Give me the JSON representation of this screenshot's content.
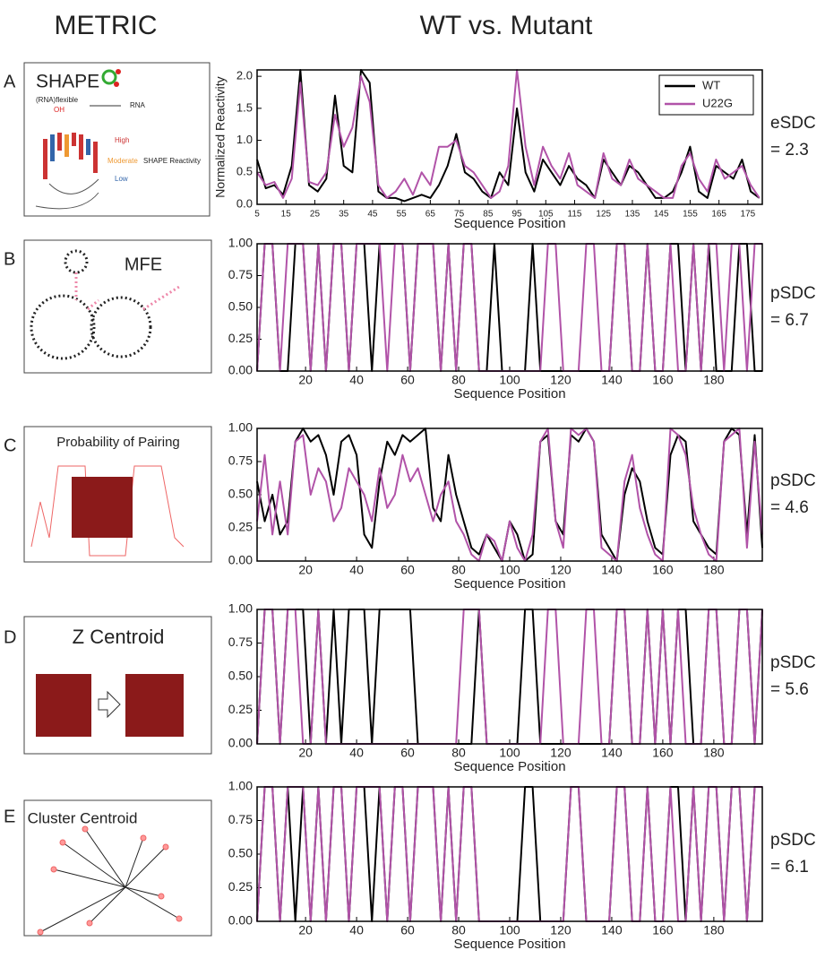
{
  "header": {
    "metric": "METRIC",
    "comparison": "WT vs. Mutant"
  },
  "panels": [
    {
      "letter": "A",
      "metric": "SHAPE",
      "texts": [
        "(RNA)flexible",
        "OH",
        "RNA",
        "High",
        "Moderate",
        "Low",
        "SHAPE Reactivity"
      ]
    },
    {
      "letter": "B",
      "metric": "MFE"
    },
    {
      "letter": "C",
      "metric": "Probability of Pairing"
    },
    {
      "letter": "D",
      "metric": "Z Centroid"
    },
    {
      "letter": "E",
      "metric": "Cluster Centroid"
    }
  ],
  "chart_data": [
    {
      "type": "line",
      "ylabel": "Normalized Reactivity",
      "xlabel": "Sequence Position",
      "annotation": [
        "eSDC",
        "= 2.3"
      ],
      "legend": "upper right",
      "xlim": [
        5,
        180
      ],
      "xticks": [
        5,
        15,
        25,
        35,
        45,
        55,
        65,
        75,
        85,
        95,
        105,
        115,
        125,
        135,
        145,
        155,
        165,
        175
      ],
      "ylim": [
        0,
        2.1
      ],
      "yticks": [
        {
          "value": 0,
          "label": "0.0"
        },
        0.5,
        {
          "value": 1,
          "label": "1.0"
        },
        1.5,
        {
          "value": 2,
          "label": "2.0"
        }
      ],
      "x": [
        5,
        8,
        11,
        14,
        17,
        20,
        23,
        26,
        29,
        32,
        35,
        38,
        41,
        44,
        47,
        50,
        53,
        56,
        59,
        62,
        65,
        68,
        71,
        74,
        77,
        80,
        83,
        86,
        89,
        92,
        95,
        98,
        101,
        104,
        107,
        110,
        113,
        116,
        119,
        122,
        125,
        128,
        131,
        134,
        137,
        140,
        143,
        146,
        149,
        152,
        155,
        158,
        161,
        164,
        167,
        170,
        173,
        176,
        179
      ],
      "series": [
        {
          "name": "WT",
          "color": "#000000",
          "values": [
            0.7,
            0.25,
            0.3,
            0.15,
            0.6,
            2.1,
            0.3,
            0.2,
            0.4,
            1.7,
            0.6,
            0.5,
            2.1,
            1.9,
            0.2,
            0.1,
            0.1,
            0.05,
            0.1,
            0.15,
            0.1,
            0.3,
            0.6,
            1.1,
            0.5,
            0.4,
            0.2,
            0.1,
            0.5,
            0.3,
            1.5,
            0.5,
            0.2,
            0.7,
            0.5,
            0.3,
            0.6,
            0.4,
            0.3,
            0.1,
            0.7,
            0.5,
            0.3,
            0.6,
            0.5,
            0.3,
            0.1,
            0.1,
            0.2,
            0.5,
            0.9,
            0.2,
            0.1,
            0.6,
            0.5,
            0.4,
            0.7,
            0.2,
            0.1
          ]
        },
        {
          "name": "U22G",
          "color": "#b153a8",
          "values": [
            0.5,
            0.3,
            0.35,
            0.1,
            0.4,
            1.9,
            0.35,
            0.3,
            0.5,
            1.4,
            0.9,
            1.2,
            2.0,
            1.6,
            0.3,
            0.1,
            0.2,
            0.4,
            0.15,
            0.5,
            0.3,
            0.9,
            0.9,
            1.0,
            0.6,
            0.5,
            0.3,
            0.1,
            0.2,
            0.6,
            2.1,
            0.9,
            0.3,
            0.9,
            0.6,
            0.4,
            0.8,
            0.3,
            0.2,
            0.1,
            0.8,
            0.4,
            0.3,
            0.7,
            0.4,
            0.3,
            0.2,
            0.1,
            0.1,
            0.6,
            0.8,
            0.4,
            0.2,
            0.7,
            0.4,
            0.5,
            0.6,
            0.3,
            0.1
          ]
        }
      ]
    },
    {
      "type": "line",
      "xlabel": "Sequence Position",
      "annotation": [
        "pSDC",
        "= 6.7"
      ],
      "xlim": [
        1,
        199
      ],
      "xticks": [
        20,
        40,
        60,
        80,
        100,
        120,
        140,
        160,
        180
      ],
      "ylim": [
        0,
        1
      ],
      "yticks": [
        {
          "value": 0,
          "label": "0.00"
        },
        {
          "value": 0.25,
          "label": "0.25"
        },
        {
          "value": 0.5,
          "label": "0.50"
        },
        {
          "value": 0.75,
          "label": "0.75"
        },
        {
          "value": 1,
          "label": "1.00"
        }
      ],
      "x": [
        1,
        4,
        7,
        10,
        13,
        16,
        19,
        22,
        25,
        28,
        31,
        34,
        37,
        40,
        43,
        46,
        49,
        52,
        55,
        58,
        61,
        64,
        67,
        70,
        73,
        76,
        79,
        82,
        85,
        88,
        91,
        94,
        97,
        100,
        103,
        106,
        109,
        112,
        115,
        118,
        121,
        124,
        127,
        130,
        133,
        136,
        139,
        142,
        145,
        148,
        151,
        154,
        157,
        160,
        163,
        166,
        169,
        172,
        175,
        178,
        181,
        184,
        187,
        190,
        193,
        196,
        199
      ],
      "series": [
        {
          "color": "#000000",
          "values": [
            0,
            1,
            1,
            0,
            0,
            1,
            1,
            0,
            1,
            0,
            1,
            1,
            0,
            1,
            1,
            0,
            1,
            1,
            1,
            1,
            0,
            1,
            1,
            1,
            0,
            1,
            0,
            1,
            1,
            0,
            0,
            1,
            0,
            0,
            0,
            0,
            1,
            0,
            0,
            0,
            0,
            0,
            0,
            0,
            0,
            0,
            0,
            1,
            1,
            0,
            0,
            1,
            0,
            0,
            1,
            1,
            0,
            1,
            0,
            1,
            0,
            0,
            0,
            1,
            1,
            0,
            0
          ]
        },
        {
          "color": "#b153a8",
          "values": [
            0,
            1,
            1,
            0,
            1,
            1,
            1,
            0,
            1,
            0,
            1,
            1,
            0,
            1,
            1,
            1,
            1,
            0,
            1,
            1,
            0,
            1,
            1,
            1,
            0,
            1,
            0,
            1,
            1,
            0,
            0,
            0,
            0,
            0,
            0,
            0,
            0,
            0,
            1,
            1,
            0,
            0,
            0,
            1,
            1,
            0,
            0,
            1,
            1,
            0,
            0,
            1,
            0,
            0,
            1,
            0,
            0,
            1,
            0,
            1,
            1,
            0,
            1,
            1,
            0,
            1,
            1
          ]
        }
      ]
    },
    {
      "type": "line",
      "xlabel": "Sequence Position",
      "annotation": [
        "pSDC",
        "= 4.6"
      ],
      "xlim": [
        1,
        199
      ],
      "xticks": [
        20,
        40,
        60,
        80,
        100,
        120,
        140,
        160,
        180
      ],
      "ylim": [
        0,
        1
      ],
      "yticks": [
        {
          "value": 0,
          "label": "0.00"
        },
        {
          "value": 0.25,
          "label": "0.25"
        },
        {
          "value": 0.5,
          "label": "0.50"
        },
        {
          "value": 0.75,
          "label": "0.75"
        },
        {
          "value": 1,
          "label": "1.00"
        }
      ],
      "x": [
        1,
        4,
        7,
        10,
        13,
        16,
        19,
        22,
        25,
        28,
        31,
        34,
        37,
        40,
        43,
        46,
        49,
        52,
        55,
        58,
        61,
        64,
        67,
        70,
        73,
        76,
        79,
        82,
        85,
        88,
        91,
        94,
        97,
        100,
        103,
        106,
        109,
        112,
        115,
        118,
        121,
        124,
        127,
        130,
        133,
        136,
        139,
        142,
        145,
        148,
        151,
        154,
        157,
        160,
        163,
        166,
        169,
        172,
        175,
        178,
        181,
        184,
        187,
        190,
        193,
        196,
        199
      ],
      "series": [
        {
          "color": "#000000",
          "values": [
            0.6,
            0.3,
            0.5,
            0.2,
            0.3,
            0.9,
            1.0,
            0.9,
            0.95,
            0.8,
            0.5,
            0.9,
            0.95,
            0.8,
            0.2,
            0.1,
            0.6,
            0.9,
            0.8,
            0.95,
            0.9,
            0.95,
            1.0,
            0.4,
            0.3,
            0.8,
            0.5,
            0.3,
            0.1,
            0.05,
            0.2,
            0.1,
            0.0,
            0.3,
            0.2,
            0.0,
            0.05,
            0.9,
            0.95,
            0.3,
            0.2,
            0.95,
            0.9,
            1.0,
            0.9,
            0.2,
            0.1,
            0.0,
            0.5,
            0.7,
            0.6,
            0.3,
            0.1,
            0.05,
            0.8,
            0.95,
            0.9,
            0.3,
            0.2,
            0.1,
            0.05,
            0.9,
            1.0,
            0.95,
            0.2,
            0.95,
            0.1
          ]
        },
        {
          "color": "#b153a8",
          "values": [
            0.3,
            0.8,
            0.2,
            0.6,
            0.2,
            0.9,
            0.95,
            0.5,
            0.7,
            0.6,
            0.3,
            0.4,
            0.7,
            0.6,
            0.5,
            0.3,
            0.7,
            0.4,
            0.5,
            0.8,
            0.6,
            0.7,
            0.5,
            0.3,
            0.5,
            0.6,
            0.3,
            0.2,
            0.05,
            0.0,
            0.2,
            0.15,
            0.0,
            0.3,
            0.1,
            0.0,
            0.2,
            0.9,
            1.0,
            0.3,
            0.1,
            1.0,
            0.95,
            1.0,
            0.9,
            0.1,
            0.05,
            0.0,
            0.6,
            0.8,
            0.4,
            0.2,
            0.05,
            0.0,
            1.0,
            0.95,
            0.8,
            0.4,
            0.2,
            0.05,
            0.0,
            0.9,
            0.95,
            1.0,
            0.1,
            0.9,
            0.2
          ]
        }
      ]
    },
    {
      "type": "line",
      "xlabel": "Sequence Position",
      "annotation": [
        "pSDC",
        "= 5.6"
      ],
      "xlim": [
        1,
        199
      ],
      "xticks": [
        20,
        40,
        60,
        80,
        100,
        120,
        140,
        160,
        180
      ],
      "ylim": [
        0,
        1
      ],
      "yticks": [
        {
          "value": 0,
          "label": "0.00"
        },
        {
          "value": 0.25,
          "label": "0.25"
        },
        {
          "value": 0.5,
          "label": "0.50"
        },
        {
          "value": 0.75,
          "label": "0.75"
        },
        {
          "value": 1,
          "label": "1.00"
        }
      ],
      "x": [
        1,
        4,
        7,
        10,
        13,
        16,
        19,
        22,
        25,
        28,
        31,
        34,
        37,
        40,
        43,
        46,
        49,
        52,
        55,
        58,
        61,
        64,
        67,
        70,
        73,
        76,
        79,
        82,
        85,
        88,
        91,
        94,
        97,
        100,
        103,
        106,
        109,
        112,
        115,
        118,
        121,
        124,
        127,
        130,
        133,
        136,
        139,
        142,
        145,
        148,
        151,
        154,
        157,
        160,
        163,
        166,
        169,
        172,
        175,
        178,
        181,
        184,
        187,
        190,
        193,
        196,
        199
      ],
      "series": [
        {
          "color": "#000000",
          "values": [
            0,
            1,
            1,
            0,
            1,
            1,
            1,
            0,
            1,
            0,
            1,
            0,
            1,
            1,
            1,
            0,
            1,
            1,
            1,
            1,
            1,
            0,
            0,
            0,
            0,
            0,
            0,
            0,
            0,
            1,
            0,
            0,
            0,
            0,
            0,
            1,
            1,
            0,
            0,
            0,
            0,
            0,
            0,
            0,
            0,
            0,
            0,
            1,
            1,
            0,
            0,
            1,
            0,
            1,
            0,
            1,
            1,
            0,
            0,
            1,
            1,
            0,
            0,
            1,
            1,
            0,
            1
          ]
        },
        {
          "color": "#b153a8",
          "values": [
            0,
            1,
            1,
            0,
            1,
            1,
            0,
            0,
            1,
            0,
            0,
            0,
            0,
            0,
            0,
            0,
            0,
            0,
            0,
            0,
            0,
            0,
            0,
            0,
            0,
            0,
            0,
            1,
            1,
            1,
            0,
            0,
            0,
            0,
            0,
            0,
            0,
            0,
            1,
            1,
            0,
            0,
            0,
            1,
            1,
            0,
            0,
            1,
            1,
            0,
            0,
            1,
            0,
            1,
            0,
            1,
            0,
            0,
            0,
            1,
            1,
            0,
            0,
            1,
            1,
            0,
            1
          ]
        }
      ]
    },
    {
      "type": "line",
      "xlabel": "Sequence Position",
      "annotation": [
        "pSDC",
        "= 6.1"
      ],
      "xlim": [
        1,
        199
      ],
      "xticks": [
        20,
        40,
        60,
        80,
        100,
        120,
        140,
        160,
        180
      ],
      "ylim": [
        0,
        1
      ],
      "yticks": [
        {
          "value": 0,
          "label": "0.00"
        },
        {
          "value": 0.25,
          "label": "0.25"
        },
        {
          "value": 0.5,
          "label": "0.50"
        },
        {
          "value": 0.75,
          "label": "0.75"
        },
        {
          "value": 1,
          "label": "1.00"
        }
      ],
      "x": [
        1,
        4,
        7,
        10,
        13,
        16,
        19,
        22,
        25,
        28,
        31,
        34,
        37,
        40,
        43,
        46,
        49,
        52,
        55,
        58,
        61,
        64,
        67,
        70,
        73,
        76,
        79,
        82,
        85,
        88,
        91,
        94,
        97,
        100,
        103,
        106,
        109,
        112,
        115,
        118,
        121,
        124,
        127,
        130,
        133,
        136,
        139,
        142,
        145,
        148,
        151,
        154,
        157,
        160,
        163,
        166,
        169,
        172,
        175,
        178,
        181,
        184,
        187,
        190,
        193,
        196,
        199
      ],
      "series": [
        {
          "color": "#000000",
          "values": [
            0,
            1,
            1,
            0,
            1,
            0,
            1,
            0,
            1,
            0,
            1,
            1,
            0,
            1,
            1,
            0,
            1,
            0,
            1,
            1,
            0,
            1,
            1,
            1,
            0,
            1,
            0,
            1,
            1,
            0,
            0,
            0,
            0,
            0,
            0,
            1,
            1,
            0,
            0,
            0,
            0,
            1,
            1,
            0,
            0,
            0,
            0,
            1,
            1,
            0,
            0,
            1,
            0,
            0,
            1,
            1,
            0,
            1,
            0,
            1,
            1,
            0,
            1,
            1,
            0,
            1,
            1
          ]
        },
        {
          "color": "#b153a8",
          "values": [
            0,
            1,
            1,
            0,
            1,
            1,
            1,
            0,
            1,
            0,
            1,
            1,
            0,
            1,
            1,
            1,
            1,
            0,
            1,
            1,
            0,
            1,
            1,
            1,
            0,
            1,
            0,
            1,
            1,
            0,
            0,
            0,
            0,
            0,
            0,
            0,
            0,
            0,
            0,
            0,
            0,
            1,
            1,
            0,
            0,
            0,
            0,
            1,
            1,
            0,
            0,
            1,
            0,
            0,
            1,
            0,
            0,
            1,
            0,
            1,
            1,
            0,
            1,
            1,
            0,
            1,
            1
          ]
        }
      ]
    }
  ]
}
